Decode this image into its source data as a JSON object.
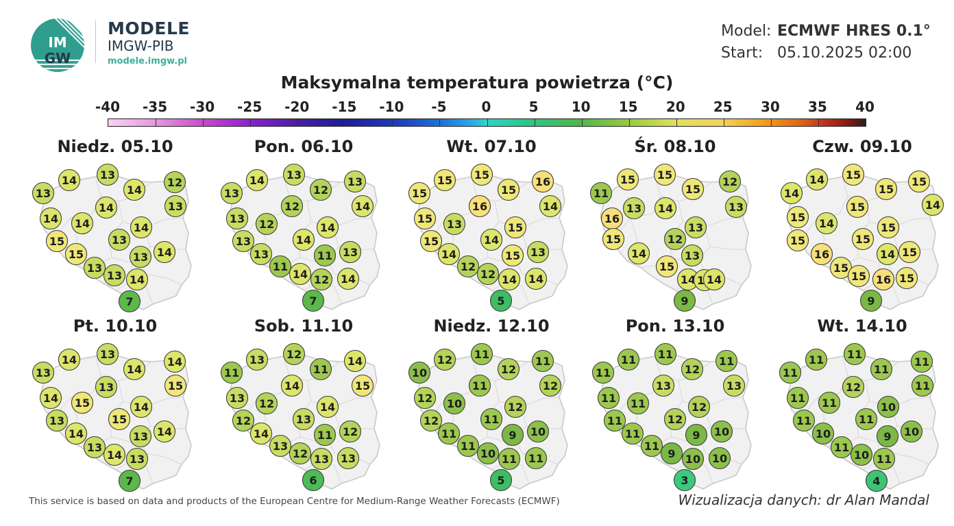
{
  "brand": {
    "logo_text": "IM GW",
    "title": "MODELE",
    "subtitle": "IMGW-PIB",
    "url": "modele.imgw.pl"
  },
  "meta": {
    "model_label": "Model:",
    "model_value": "ECMWF HRES 0.1°",
    "start_label": "Start:",
    "start_value": "05.10.2025 02:00"
  },
  "title": "Maksymalna temperatura powietrza (°C)",
  "colorbar": {
    "labels": [
      "-40",
      "-35",
      "-30",
      "-25",
      "-20",
      "-15",
      "-10",
      "-5",
      "0",
      "5",
      "10",
      "15",
      "20",
      "25",
      "30",
      "35",
      "40"
    ],
    "min": -40,
    "max": 40
  },
  "colors": {
    "background": "#ffffff",
    "map_fill": "#f1f1f1",
    "map_border": "#c8c8c8",
    "brand_text": "#25394a",
    "brand_accent": "#3fae9b"
  },
  "map_data": {
    "panels": [
      {
        "date": "Niedz. 05.10",
        "values": [
          14,
          13,
          13,
          14,
          12,
          14,
          13,
          14,
          14,
          14,
          15,
          13,
          15,
          13,
          14,
          13,
          13,
          14,
          7
        ]
      },
      {
        "date": "Pon. 06.10",
        "values": [
          14,
          13,
          13,
          13,
          12,
          14,
          13,
          12,
          14,
          13,
          12,
          14,
          13,
          11,
          13,
          11,
          14,
          12,
          14,
          7
        ]
      },
      {
        "date": "Wt. 07.10",
        "values": [
          15,
          15,
          15,
          16,
          15,
          14,
          15,
          16,
          15,
          15,
          13,
          14,
          14,
          15,
          13,
          12,
          12,
          14,
          14,
          5
        ]
      },
      {
        "date": "Śr. 08.10",
        "values": [
          15,
          15,
          11,
          15,
          12,
          13,
          13,
          16,
          14,
          13,
          15,
          12,
          14,
          13,
          15,
          14,
          14,
          14,
          9
        ]
      },
      {
        "date": "Czw. 09.10",
        "values": [
          14,
          15,
          15,
          14,
          15,
          15,
          14,
          15,
          14,
          15,
          15,
          15,
          16,
          14,
          15,
          15,
          15,
          16,
          15,
          9
        ]
      },
      {
        "date": "Pt. 10.10",
        "values": [
          14,
          13,
          13,
          14,
          14,
          13,
          15,
          14,
          15,
          14,
          13,
          15,
          14,
          13,
          14,
          13,
          14,
          13,
          7
        ]
      },
      {
        "date": "Sob. 11.10",
        "values": [
          13,
          12,
          11,
          14,
          11,
          15,
          13,
          14,
          14,
          12,
          12,
          13,
          14,
          11,
          12,
          13,
          12,
          13,
          13,
          6
        ]
      },
      {
        "date": "Niedz. 12.10",
        "values": [
          12,
          11,
          10,
          11,
          12,
          12,
          12,
          11,
          12,
          12,
          10,
          11,
          11,
          9,
          10,
          11,
          10,
          11,
          11,
          5
        ]
      },
      {
        "date": "Pon. 13.10",
        "values": [
          11,
          11,
          11,
          11,
          12,
          13,
          11,
          13,
          12,
          11,
          11,
          12,
          11,
          9,
          10,
          11,
          9,
          10,
          10,
          3
        ]
      },
      {
        "date": "Wt. 14.10",
        "values": [
          11,
          11,
          11,
          11,
          11,
          12,
          11,
          11,
          11,
          10,
          11,
          11,
          10,
          9,
          10,
          11,
          10,
          11,
          4
        ]
      }
    ]
  },
  "footer": {
    "credit": "This service is based on data and products of the European Centre for Medium-Range Weather Forecasts (ECMWF)",
    "author": "Wizualizacja danych: dr Alan Mandal"
  }
}
